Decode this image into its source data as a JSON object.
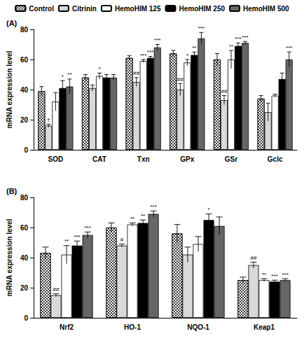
{
  "chart_data": [
    {
      "type": "bar",
      "title": "(A)",
      "y_label": "mRNA expression level",
      "categories": [
        "SOD",
        "CAT",
        "Txn",
        "GPx",
        "GSr",
        "Gclc"
      ],
      "ylim": [
        0,
        80
      ],
      "yticks": [
        0,
        20,
        40,
        60,
        80
      ],
      "grid": false,
      "legend": "top",
      "series": [
        {
          "name": "Control",
          "color": "#3a3a3a",
          "marker": "checker",
          "values": [
            39,
            48,
            61,
            64,
            60,
            34
          ],
          "errors": [
            3,
            2,
            1.5,
            2,
            4,
            2
          ],
          "significance": [
            null,
            null,
            null,
            null,
            null,
            null
          ]
        },
        {
          "name": "Citrinin",
          "color": "#d9d9d9",
          "values": [
            16,
            41,
            45,
            40,
            33,
            25
          ],
          "errors": [
            1,
            2,
            3,
            4,
            3,
            6
          ],
          "significance": [
            "†",
            null,
            "##",
            "##",
            "##",
            null
          ]
        },
        {
          "name": "HemoHIM 125",
          "color": "#ffffff",
          "values": [
            32,
            49,
            59,
            58,
            60,
            36
          ],
          "errors": [
            6,
            2,
            1,
            2,
            6,
            1
          ],
          "significance": [
            null,
            "*",
            "***",
            "*",
            "**",
            null
          ]
        },
        {
          "name": "HemoHIM 250",
          "color": "#000000",
          "values": [
            41,
            48,
            61,
            63,
            69,
            47
          ],
          "errors": [
            5,
            2,
            1,
            2,
            2,
            4
          ],
          "significance": [
            "*",
            null,
            "***",
            "**",
            "***",
            null
          ]
        },
        {
          "name": "HemoHIM 500",
          "color": "#666666",
          "values": [
            42,
            48,
            68,
            74,
            71,
            60
          ],
          "errors": [
            5,
            2,
            2,
            4,
            1,
            5
          ],
          "significance": [
            "**",
            null,
            "***",
            "***",
            "***",
            "***"
          ]
        }
      ]
    },
    {
      "type": "bar",
      "title": "(B)",
      "y_label": "mRNA expression level",
      "categories": [
        "Nrf2",
        "HO-1",
        "NQO-1",
        "Keap1"
      ],
      "ylim": [
        0,
        80
      ],
      "yticks": [
        0,
        20,
        40,
        60,
        80
      ],
      "grid": false,
      "series": [
        {
          "name": "Control",
          "color": "#3a3a3a",
          "marker": "checker",
          "values": [
            43,
            60,
            56,
            25
          ],
          "errors": [
            4,
            3,
            6,
            2
          ],
          "significance": [
            null,
            null,
            null,
            null
          ]
        },
        {
          "name": "Citrinin",
          "color": "#d9d9d9",
          "values": [
            15,
            48,
            42,
            35
          ],
          "errors": [
            1,
            1,
            5,
            2
          ],
          "significance": [
            "##",
            "#",
            null,
            "##"
          ]
        },
        {
          "name": "HemoHIM 125",
          "color": "#ffffff",
          "values": [
            42,
            62,
            49,
            25
          ],
          "errors": [
            6,
            1,
            5,
            1
          ],
          "significance": [
            "**",
            "**",
            null,
            "**"
          ]
        },
        {
          "name": "HemoHIM 250",
          "color": "#000000",
          "values": [
            48,
            63,
            65,
            24
          ],
          "errors": [
            3,
            2,
            4,
            1
          ],
          "significance": [
            "***",
            "**",
            "*",
            "***"
          ]
        },
        {
          "name": "HemoHIM 500",
          "color": "#666666",
          "values": [
            55,
            69,
            61,
            25
          ],
          "errors": [
            2,
            2,
            6,
            1
          ],
          "significance": [
            "***",
            "***",
            null,
            "***"
          ]
        }
      ]
    }
  ]
}
